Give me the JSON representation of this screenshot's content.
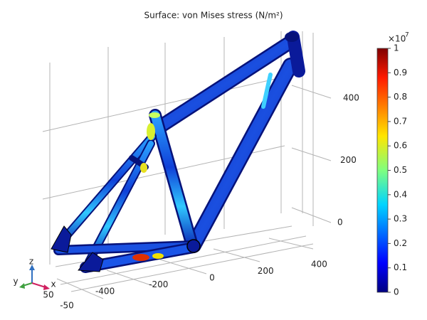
{
  "title": "Surface: von Mises stress (N/m²)",
  "colorbar": {
    "multiplier": "×10",
    "exponent": "7",
    "lim": [
      0,
      1
    ],
    "ticks": [
      0,
      0.1,
      0.2,
      0.3,
      0.4,
      0.5,
      0.6,
      0.7,
      0.8,
      0.9,
      1
    ]
  },
  "axes": {
    "z_ticks": [
      0,
      200,
      400
    ],
    "x_ticks": [
      -400,
      -200,
      0,
      200,
      400
    ],
    "y_ticks": [
      -50,
      50
    ],
    "labels": {
      "z": "z",
      "y": "y",
      "x": "x"
    }
  }
}
